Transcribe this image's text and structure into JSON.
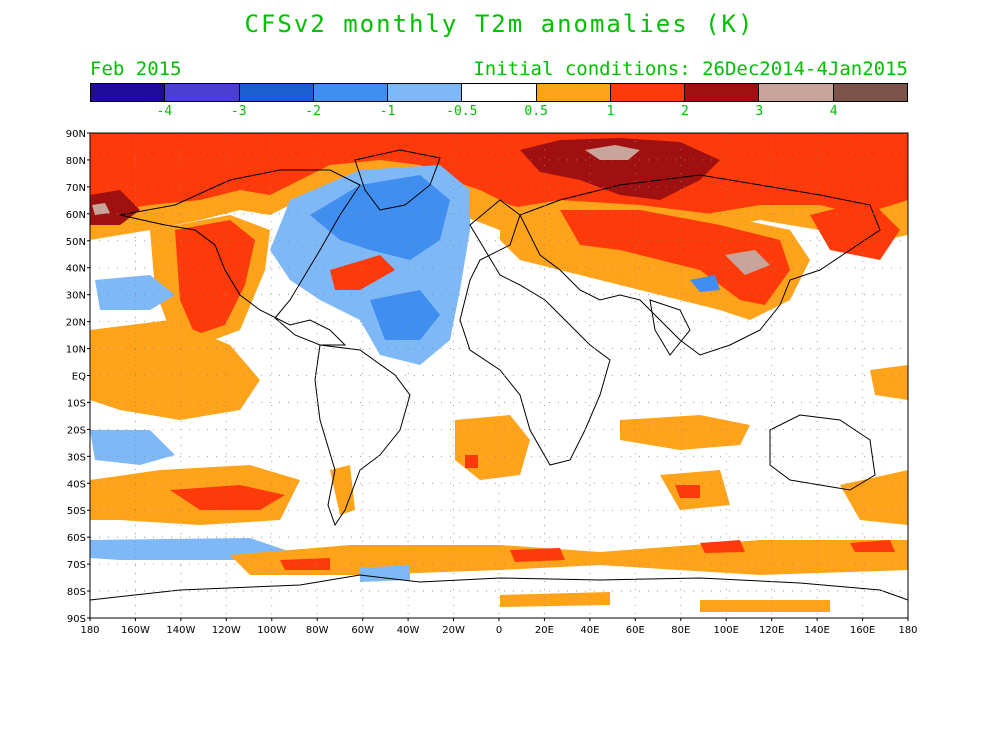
{
  "title": "CFSv2 monthly T2m anomalies (K)",
  "forecast_month": "Feb 2015",
  "initial_conditions": "Initial conditions: 26Dec2014-4Jan2015",
  "colorbar": {
    "colors": [
      "#1f0a9c",
      "#4a3fd0",
      "#1a5fd0",
      "#3f8ef0",
      "#7fb8f6",
      "#ffffff",
      "#ffa31a",
      "#ff3a0a",
      "#a01010",
      "#c8a49a",
      "#7a5448"
    ],
    "labels": [
      "-4",
      "-3",
      "-2",
      "-1",
      "-0.5",
      "0.5",
      "1",
      "2",
      "3",
      "4"
    ]
  },
  "latitude_labels": [
    "90N",
    "80N",
    "70N",
    "60N",
    "50N",
    "40N",
    "30N",
    "20N",
    "10N",
    "EQ",
    "10S",
    "20S",
    "30S",
    "40S",
    "50S",
    "60S",
    "70S",
    "80S",
    "90S"
  ],
  "longitude_labels": [
    "180",
    "160W",
    "140W",
    "120W",
    "100W",
    "80W",
    "60W",
    "40W",
    "20W",
    "0",
    "20E",
    "40E",
    "60E",
    "80E",
    "100E",
    "120E",
    "140E",
    "160E",
    "180"
  ],
  "colors": {
    "text_green": "#00c000",
    "ocean": "#ffffff",
    "coast": "#000000",
    "grid": "#888888"
  }
}
